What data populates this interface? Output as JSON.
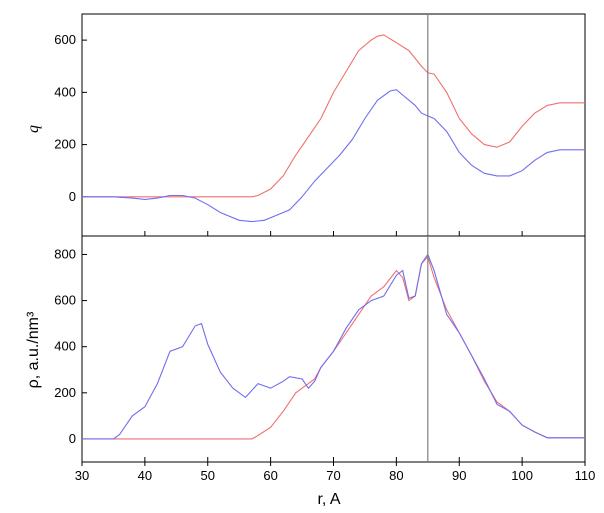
{
  "chart_data": [
    {
      "type": "line",
      "panel": "top",
      "xlabel": "",
      "ylabel": "q",
      "xlim": [
        30,
        110
      ],
      "ylim": [
        -150,
        700
      ],
      "x_ticks": [
        "30",
        "40",
        "50",
        "60",
        "70",
        "80",
        "90",
        "100",
        "110"
      ],
      "y_ticks": [
        "0",
        "200",
        "400",
        "600"
      ],
      "y_tick_values": [
        0,
        200,
        400,
        600
      ],
      "vline_x": 85,
      "colors": {
        "red": "#f07070",
        "blue": "#6f6ff0",
        "vline": "#808080"
      },
      "series": [
        {
          "color": "#f07070",
          "x": [
            30,
            35,
            40,
            45,
            50,
            55,
            57,
            58,
            60,
            62,
            64,
            66,
            68,
            70,
            72,
            74,
            76,
            77,
            78,
            80,
            82,
            84,
            85,
            86,
            88,
            90,
            92,
            94,
            96,
            98,
            100,
            102,
            104,
            106,
            110
          ],
          "y": [
            0,
            0,
            0,
            0,
            0,
            0,
            0,
            5,
            30,
            80,
            160,
            230,
            300,
            400,
            480,
            560,
            600,
            615,
            620,
            590,
            560,
            500,
            475,
            470,
            400,
            300,
            240,
            200,
            190,
            210,
            270,
            320,
            350,
            360,
            360
          ]
        },
        {
          "color": "#6f6ff0",
          "x": [
            30,
            35,
            38,
            40,
            42,
            44,
            46,
            48,
            50,
            52,
            55,
            57,
            59,
            61,
            63,
            65,
            67,
            69,
            71,
            73,
            75,
            77,
            79,
            80,
            81,
            83,
            84,
            85,
            86,
            88,
            90,
            92,
            94,
            96,
            98,
            100,
            102,
            104,
            106,
            110
          ],
          "y": [
            0,
            0,
            -5,
            -10,
            -5,
            5,
            5,
            -5,
            -30,
            -60,
            -90,
            -95,
            -90,
            -70,
            -50,
            0,
            60,
            110,
            160,
            220,
            300,
            370,
            405,
            410,
            390,
            350,
            320,
            310,
            300,
            250,
            170,
            120,
            90,
            80,
            80,
            100,
            140,
            170,
            180,
            180
          ]
        }
      ]
    },
    {
      "type": "line",
      "panel": "bottom",
      "xlabel": "r, A",
      "ylabel": "ρ, a.u./nm³",
      "xlim": [
        30,
        110
      ],
      "ylim": [
        -100,
        880
      ],
      "x_ticks": [
        "30",
        "40",
        "50",
        "60",
        "70",
        "80",
        "90",
        "100",
        "110"
      ],
      "y_ticks": [
        "0",
        "200",
        "400",
        "600",
        "800"
      ],
      "y_tick_values": [
        0,
        200,
        400,
        600,
        800
      ],
      "vline_x": 85,
      "colors": {
        "red": "#f07070",
        "blue": "#6f6ff0",
        "vline": "#808080"
      },
      "series": [
        {
          "color": "#f07070",
          "x": [
            30,
            57,
            58,
            60,
            62,
            64,
            66,
            67,
            68,
            70,
            72,
            74,
            76,
            78,
            80,
            81,
            82,
            83,
            84,
            85,
            86,
            88,
            90,
            92,
            94,
            96,
            98,
            100,
            102,
            104,
            110
          ],
          "y": [
            0,
            0,
            15,
            50,
            120,
            200,
            240,
            260,
            310,
            380,
            460,
            540,
            620,
            660,
            730,
            700,
            600,
            620,
            760,
            790,
            700,
            560,
            460,
            360,
            250,
            160,
            120,
            60,
            30,
            5,
            5
          ]
        },
        {
          "color": "#6f6ff0",
          "x": [
            30,
            35,
            36,
            38,
            40,
            42,
            44,
            46,
            48,
            49,
            50,
            52,
            54,
            56,
            58,
            60,
            62,
            63,
            65,
            66,
            67,
            68,
            70,
            72,
            74,
            76,
            78,
            80,
            81,
            82,
            83,
            84,
            85,
            86,
            88,
            90,
            92,
            94,
            96,
            97,
            98,
            100,
            102,
            104,
            110
          ],
          "y": [
            0,
            0,
            20,
            100,
            140,
            240,
            380,
            400,
            490,
            500,
            410,
            290,
            220,
            180,
            240,
            220,
            250,
            270,
            260,
            220,
            250,
            310,
            380,
            480,
            560,
            600,
            620,
            710,
            730,
            610,
            620,
            760,
            800,
            730,
            540,
            460,
            360,
            260,
            150,
            135,
            120,
            60,
            30,
            5,
            5
          ]
        }
      ]
    }
  ]
}
